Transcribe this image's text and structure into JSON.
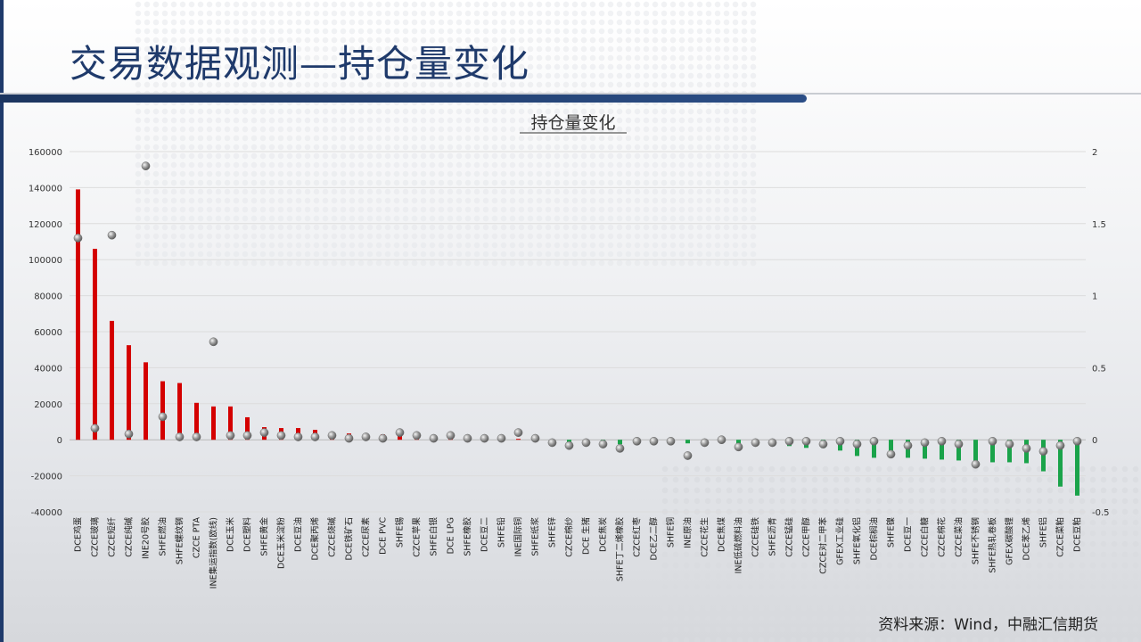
{
  "slide": {
    "title": "交易数据观测—持仓量变化",
    "source": "资料来源：Wind，中融汇信期货"
  },
  "colors": {
    "positive": "#d40000",
    "negative": "#1aa34a",
    "marker": "#8a8a8a",
    "title": "#1f3a6b"
  },
  "chart_data": {
    "type": "bar",
    "title": "持仓量变化",
    "left_axis": {
      "ylim": [
        -40000,
        160000
      ],
      "ticks": [
        -40000,
        -20000,
        0,
        20000,
        40000,
        60000,
        80000,
        100000,
        120000,
        140000,
        160000
      ]
    },
    "right_axis": {
      "ylim": [
        -0.5,
        2
      ],
      "ticks": [
        -0.5,
        0,
        0.5,
        1,
        1.5,
        2
      ],
      "tick_labels": [
        "-0.5",
        "0",
        "0.5",
        "1",
        "1.5",
        "2"
      ]
    },
    "categories": [
      "DCE鸡蛋",
      "CZCE玻璃",
      "CZCE短纤",
      "CZCE纯碱",
      "INE20号胶",
      "SHFE燃油",
      "SHFE螺纹钢",
      "CZCE PTA",
      "INE集运指数(欧线)",
      "DCE玉米",
      "DCE塑料",
      "SHFE黄金",
      "DCE玉米淀粉",
      "DCE豆油",
      "DCE聚丙烯",
      "CZCE烧碱",
      "DCE铁矿石",
      "CZCE尿素",
      "DCE PVC",
      "SHFE锡",
      "CZCE苹果",
      "SHFE白银",
      "DCE LPG",
      "SHFE橡胶",
      "DCE豆二",
      "SHFE铅",
      "INE国际铜",
      "SHFE纸浆",
      "SHFE锌",
      "CZCE棉纱",
      "DCE 生猪",
      "DCE焦炭",
      "SHFE丁二烯橡胶",
      "CZCE红枣",
      "DCE乙二醇",
      "SHFE铜",
      "INE原油",
      "CZCE花生",
      "DCE焦煤",
      "INE低硫燃料油",
      "CZCE硅铁",
      "SHFE沥青",
      "CZCE锰硅",
      "CZCE甲醇",
      "CZCE对二甲苯",
      "GFEX工业硅",
      "SHFE氧化铝",
      "DCE棕榈油",
      "SHFE镍",
      "DCE豆一",
      "CZCE白糖",
      "CZCE棉花",
      "CZCE菜油",
      "SHFE不锈钢",
      "SHFE热轧卷板",
      "GFEX碳酸锂",
      "DCE苯乙烯",
      "SHFE铝",
      "CZCE菜粕",
      "DCE豆粕"
    ],
    "series": [
      {
        "axis": "left",
        "type": "bar",
        "values": [
          139000,
          106000,
          66000,
          52500,
          43000,
          32500,
          31500,
          20500,
          18500,
          18500,
          12500,
          7000,
          6500,
          6500,
          5500,
          3000,
          3500,
          2500,
          3000,
          3000,
          2000,
          1000,
          1500,
          1000,
          500,
          500,
          500,
          300,
          -1000,
          -1500,
          -1500,
          -2000,
          -2500,
          -1500,
          -1000,
          -1000,
          -2000,
          -1500,
          -1500,
          -2500,
          -2500,
          -2500,
          -3500,
          -4500,
          -4500,
          -6000,
          -9000,
          -10000,
          -10000,
          -10000,
          -10500,
          -11000,
          -11500,
          -12000,
          -12500,
          -12500,
          -13000,
          -17500,
          -26000,
          -31000
        ]
      },
      {
        "axis": "right",
        "type": "scatter",
        "values": [
          1.4,
          0.08,
          1.42,
          0.04,
          1.9,
          0.16,
          0.02,
          0.02,
          0.68,
          0.03,
          0.03,
          0.05,
          0.03,
          0.02,
          0.02,
          0.03,
          0.01,
          0.02,
          0.01,
          0.05,
          0.03,
          0.01,
          0.03,
          0.01,
          0.01,
          0.01,
          0.05,
          0.01,
          -0.02,
          -0.04,
          -0.02,
          -0.03,
          -0.06,
          -0.01,
          -0.01,
          -0.01,
          -0.11,
          -0.02,
          0.0,
          -0.05,
          -0.02,
          -0.02,
          -0.01,
          -0.01,
          -0.03,
          -0.01,
          -0.03,
          -0.01,
          -0.1,
          -0.04,
          -0.02,
          -0.01,
          -0.03,
          -0.17,
          -0.01,
          -0.03,
          -0.06,
          -0.08,
          -0.04,
          -0.01
        ]
      }
    ]
  }
}
